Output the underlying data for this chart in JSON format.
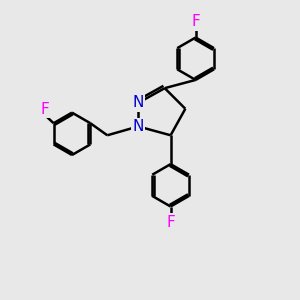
{
  "bg_color": "#e8e8e8",
  "bond_color": "#000000",
  "N_color": "#0000cd",
  "F_color": "#ff00ff",
  "bond_width": 1.8,
  "font_size_atom": 10,
  "fig_size": [
    3.0,
    3.0
  ],
  "dpi": 100,
  "xlim": [
    0,
    10
  ],
  "ylim": [
    0,
    10
  ]
}
